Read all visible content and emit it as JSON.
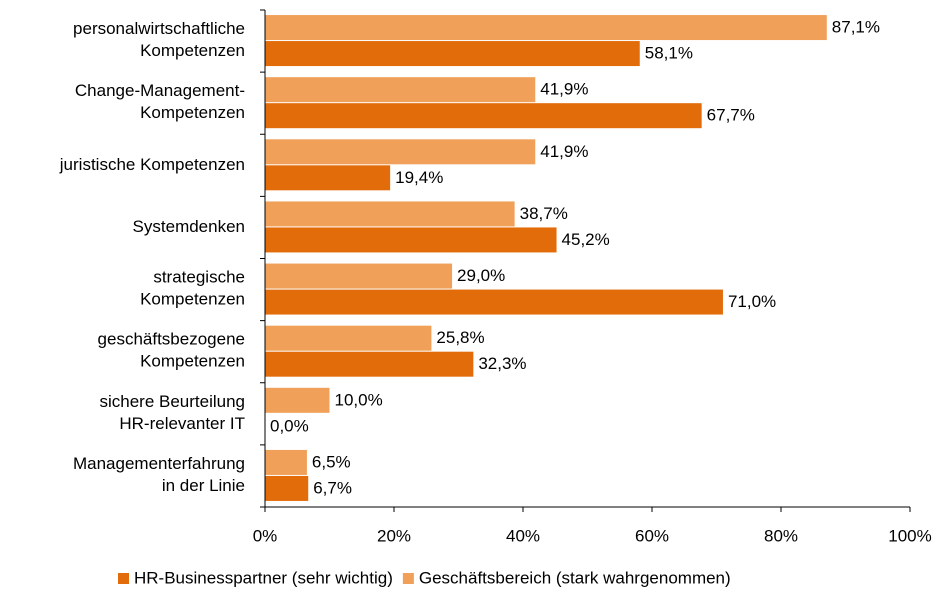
{
  "chart_data": {
    "type": "barh",
    "categories": [
      "personalwirtschaftliche\nKompetenzen",
      "Change-Management-\nKompetenzen",
      "juristische Kompetenzen",
      "Systemdenken",
      "strategische\nKompetenzen",
      "geschäftsbezogene\nKompetenzen",
      "sichere Beurteilung\nHR-relevanter IT",
      "Managementerfahrung\nin der Linie"
    ],
    "series": [
      {
        "name": "HR-Businesspartner (sehr wichtig)",
        "color": "#e26b0a",
        "values": [
          58.1,
          67.7,
          19.4,
          45.2,
          71.0,
          32.3,
          0.0,
          6.7
        ],
        "value_labels": [
          "58,1%",
          "67,7%",
          "19,4%",
          "45,2%",
          "71,0%",
          "32,3%",
          "0,0%",
          "6,7%"
        ]
      },
      {
        "name": "Geschäftsbereich (stark wahrgenommen)",
        "color": "#f0a058",
        "values": [
          87.1,
          41.9,
          41.9,
          38.7,
          29.0,
          25.8,
          10.0,
          6.5
        ],
        "value_labels": [
          "87,1%",
          "41,9%",
          "41,9%",
          "38,7%",
          "29,0%",
          "25,8%",
          "10,0%",
          "6,5%"
        ]
      }
    ],
    "xlim": [
      0,
      100
    ],
    "xticks": [
      {
        "value": 0,
        "label": "0%"
      },
      {
        "value": 20,
        "label": "20%"
      },
      {
        "value": 40,
        "label": "40%"
      },
      {
        "value": 60,
        "label": "60%"
      },
      {
        "value": 80,
        "label": "80%"
      },
      {
        "value": 100,
        "label": "100%"
      }
    ],
    "legend": "bottom"
  }
}
